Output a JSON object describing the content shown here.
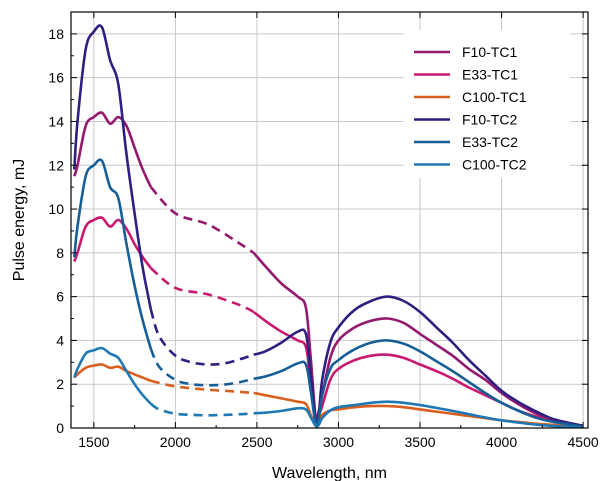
{
  "chart_data": {
    "type": "line",
    "xlabel": "Wavelength, nm",
    "ylabel": "Pulse energy, mJ",
    "xlim": [
      1360,
      4530
    ],
    "ylim": [
      0,
      19
    ],
    "x_ticks": [
      1500,
      2000,
      2500,
      3000,
      3500,
      4000,
      4500
    ],
    "y_ticks": [
      0,
      2,
      4,
      6,
      8,
      10,
      12,
      14,
      16,
      18
    ],
    "grid": true,
    "legend_position": "top-right",
    "dashed_x_range": [
      1830,
      2480
    ],
    "series": [
      {
        "name": "F10-TC1",
        "color": "#93196f",
        "x": [
          1380,
          1400,
          1450,
          1500,
          1550,
          1600,
          1650,
          1700,
          1750,
          1800,
          1850,
          2000,
          2200,
          2400,
          2480,
          2550,
          2650,
          2750,
          2800,
          2830,
          2860,
          2880,
          2900,
          2950,
          3000,
          3100,
          3200,
          3300,
          3400,
          3500,
          3600,
          3700,
          3800,
          3900,
          4000,
          4100,
          4200,
          4300,
          4400,
          4500
        ],
        "y": [
          11.5,
          12.0,
          13.8,
          14.2,
          14.4,
          13.9,
          14.2,
          13.8,
          12.8,
          11.8,
          11.0,
          9.8,
          9.3,
          8.4,
          8.0,
          7.4,
          6.6,
          6.0,
          5.5,
          3.2,
          0.5,
          0.8,
          1.5,
          3.2,
          4.0,
          4.6,
          4.9,
          5.0,
          4.8,
          4.3,
          3.8,
          3.3,
          2.7,
          2.2,
          1.6,
          1.1,
          0.7,
          0.4,
          0.25,
          0.1
        ]
      },
      {
        "name": "E33-TC1",
        "color": "#c8196e",
        "x": [
          1380,
          1400,
          1450,
          1500,
          1550,
          1600,
          1650,
          1700,
          1750,
          1800,
          1850,
          2000,
          2200,
          2400,
          2480,
          2550,
          2650,
          2750,
          2800,
          2830,
          2860,
          2880,
          2900,
          2950,
          3000,
          3100,
          3200,
          3300,
          3400,
          3500,
          3600,
          3700,
          3800,
          3900,
          4000,
          4100,
          4200,
          4300,
          4400,
          4500
        ],
        "y": [
          7.6,
          8.0,
          9.2,
          9.5,
          9.6,
          9.2,
          9.5,
          9.1,
          8.4,
          7.8,
          7.3,
          6.4,
          6.1,
          5.6,
          5.3,
          4.9,
          4.4,
          4.0,
          3.7,
          2.1,
          0.4,
          0.6,
          1.0,
          2.2,
          2.7,
          3.1,
          3.3,
          3.35,
          3.2,
          2.9,
          2.6,
          2.25,
          1.85,
          1.5,
          1.15,
          0.8,
          0.55,
          0.35,
          0.2,
          0.1
        ]
      },
      {
        "name": "C100-TC1",
        "color": "#d95f1e",
        "x": [
          1380,
          1400,
          1450,
          1500,
          1550,
          1600,
          1650,
          1700,
          1750,
          1800,
          1850,
          2000,
          2200,
          2400,
          2480,
          2550,
          2650,
          2750,
          2800,
          2830,
          2860,
          2880,
          2900,
          2950,
          3000,
          3100,
          3200,
          3300,
          3400,
          3500,
          3600,
          3700,
          3800,
          3900,
          4000,
          4100,
          4200,
          4300,
          4400,
          4500
        ],
        "y": [
          2.3,
          2.45,
          2.75,
          2.85,
          2.9,
          2.75,
          2.8,
          2.6,
          2.45,
          2.3,
          2.15,
          1.9,
          1.75,
          1.65,
          1.6,
          1.5,
          1.35,
          1.2,
          1.1,
          0.6,
          0.15,
          0.3,
          0.6,
          0.8,
          0.85,
          0.95,
          1.0,
          1.0,
          0.95,
          0.85,
          0.75,
          0.65,
          0.55,
          0.45,
          0.35,
          0.28,
          0.2,
          0.15,
          0.1,
          0.05
        ]
      },
      {
        "name": "F10-TC2",
        "color": "#2e1f80",
        "x": [
          1380,
          1400,
          1450,
          1500,
          1550,
          1600,
          1650,
          1700,
          1750,
          1800,
          1850,
          1900,
          2000,
          2100,
          2200,
          2300,
          2400,
          2480,
          2550,
          2650,
          2750,
          2800,
          2830,
          2860,
          2880,
          2900,
          2950,
          3000,
          3100,
          3200,
          3300,
          3400,
          3500,
          3600,
          3700,
          3800,
          3900,
          4000,
          4100,
          4200,
          4300,
          4400,
          4500
        ],
        "y": [
          11.8,
          14.0,
          17.3,
          18.1,
          18.3,
          16.8,
          15.7,
          12.5,
          9.8,
          7.3,
          5.4,
          4.2,
          3.3,
          3.0,
          2.9,
          2.95,
          3.15,
          3.35,
          3.5,
          3.9,
          4.4,
          4.3,
          2.5,
          0.3,
          0.7,
          2.2,
          3.9,
          4.6,
          5.4,
          5.8,
          6.0,
          5.8,
          5.3,
          4.6,
          3.9,
          3.1,
          2.4,
          1.7,
          1.2,
          0.8,
          0.45,
          0.25,
          0.1
        ]
      },
      {
        "name": "E33-TC2",
        "color": "#165f96",
        "x": [
          1380,
          1400,
          1450,
          1500,
          1550,
          1600,
          1650,
          1700,
          1750,
          1800,
          1850,
          1900,
          2000,
          2100,
          2200,
          2300,
          2400,
          2480,
          2550,
          2650,
          2750,
          2800,
          2830,
          2860,
          2880,
          2900,
          2950,
          3000,
          3100,
          3200,
          3300,
          3400,
          3500,
          3600,
          3700,
          3800,
          3900,
          4000,
          4100,
          4200,
          4300,
          4400,
          4500
        ],
        "y": [
          7.8,
          9.2,
          11.5,
          12.0,
          12.2,
          11.0,
          10.5,
          8.4,
          6.5,
          4.9,
          3.6,
          2.8,
          2.2,
          2.0,
          1.95,
          1.98,
          2.1,
          2.25,
          2.35,
          2.6,
          2.95,
          2.9,
          1.7,
          0.2,
          0.5,
          1.5,
          2.7,
          3.1,
          3.6,
          3.9,
          4.0,
          3.85,
          3.5,
          3.05,
          2.6,
          2.1,
          1.6,
          1.15,
          0.8,
          0.5,
          0.3,
          0.18,
          0.07
        ]
      },
      {
        "name": "C100-TC2",
        "color": "#1f77b4",
        "x": [
          1380,
          1400,
          1450,
          1500,
          1550,
          1600,
          1650,
          1700,
          1750,
          1800,
          1850,
          1900,
          2000,
          2100,
          2200,
          2300,
          2400,
          2480,
          2550,
          2650,
          2750,
          2800,
          2830,
          2860,
          2880,
          2900,
          2950,
          3000,
          3100,
          3200,
          3300,
          3400,
          3500,
          3600,
          3700,
          3800,
          3900,
          4000,
          4100,
          4200,
          4300,
          4400,
          4500
        ],
        "y": [
          2.3,
          2.7,
          3.4,
          3.55,
          3.65,
          3.4,
          3.2,
          2.6,
          2.0,
          1.5,
          1.1,
          0.85,
          0.65,
          0.6,
          0.58,
          0.6,
          0.63,
          0.67,
          0.7,
          0.78,
          0.9,
          0.85,
          0.5,
          0.1,
          0.15,
          0.45,
          0.8,
          0.95,
          1.05,
          1.15,
          1.2,
          1.15,
          1.05,
          0.92,
          0.78,
          0.63,
          0.48,
          0.35,
          0.25,
          0.16,
          0.1,
          0.06,
          0.03
        ]
      }
    ]
  }
}
